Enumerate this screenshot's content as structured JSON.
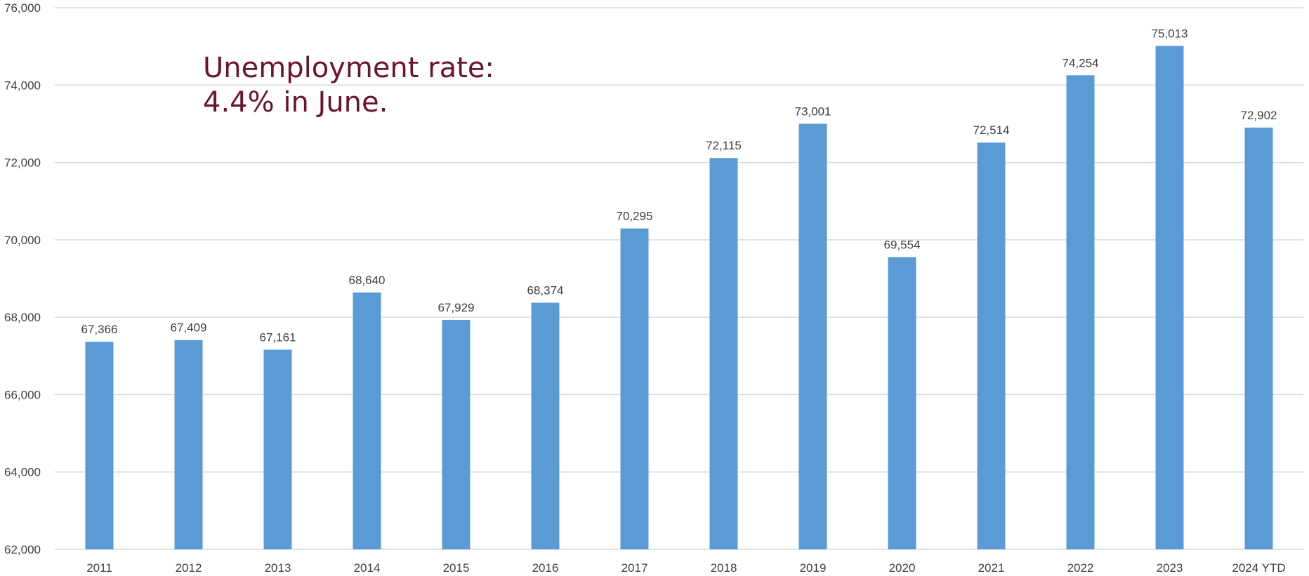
{
  "annotation": {
    "line1": "Unemployment rate:",
    "line2": "4.4% in June."
  },
  "colors": {
    "bar": "#5b9bd5",
    "grid": "#d9d9d9",
    "annotation": "#6b1430",
    "labels": "#404040"
  },
  "chart_data": {
    "type": "bar",
    "categories": [
      "2011",
      "2012",
      "2013",
      "2014",
      "2015",
      "2016",
      "2017",
      "2018",
      "2019",
      "2020",
      "2021",
      "2022",
      "2023",
      "2024 YTD"
    ],
    "values": [
      67366,
      67409,
      67161,
      68640,
      67929,
      68374,
      70295,
      72115,
      73001,
      69554,
      72514,
      74254,
      75013,
      72902
    ],
    "value_labels": [
      "67,366",
      "67,409",
      "67,161",
      "68,640",
      "67,929",
      "68,374",
      "70,295",
      "72,115",
      "73,001",
      "69,554",
      "72,514",
      "74,254",
      "75,013",
      "72,902"
    ],
    "ylim": [
      62000,
      76000
    ],
    "yticks": [
      62000,
      64000,
      66000,
      68000,
      70000,
      72000,
      74000,
      76000
    ],
    "ytick_labels": [
      "62,000",
      "64,000",
      "66,000",
      "68,000",
      "70,000",
      "72,000",
      "74,000",
      "76,000"
    ],
    "grid": true,
    "legend": false,
    "title": "",
    "xlabel": "",
    "ylabel": ""
  }
}
